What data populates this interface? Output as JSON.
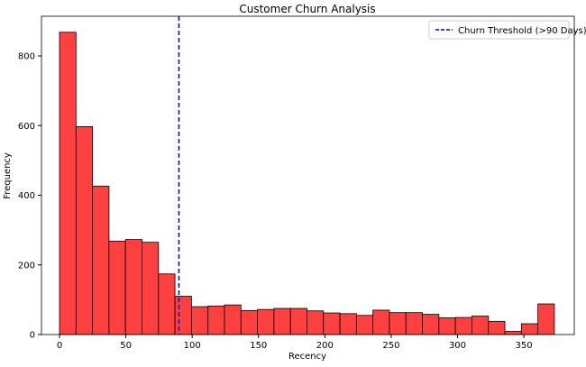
{
  "chart_data": {
    "type": "bar",
    "title": "Customer Churn Analysis",
    "xlabel": "Recency",
    "ylabel": "Frequency",
    "xlim": [
      -13.6,
      388
    ],
    "ylim": [
      0,
      914
    ],
    "xticks": [
      0,
      50,
      100,
      150,
      200,
      250,
      300,
      350
    ],
    "yticks": [
      0,
      200,
      400,
      600,
      800
    ],
    "bin_range": [
      0,
      373
    ],
    "values": [
      868,
      597,
      426,
      268,
      273,
      265,
      174,
      110,
      80,
      82,
      85,
      69,
      72,
      75,
      75,
      68,
      62,
      60,
      55,
      70,
      63,
      63,
      58,
      48,
      49,
      53,
      38,
      9,
      31,
      88
    ],
    "bar_color": "#ff4040",
    "edge_color": "#000000",
    "threshold": {
      "x": 90,
      "label": "Churn Threshold (>90 Days)",
      "color": "#0000cc",
      "style": "dashed"
    },
    "legend_position": "top-right",
    "grid": false
  }
}
